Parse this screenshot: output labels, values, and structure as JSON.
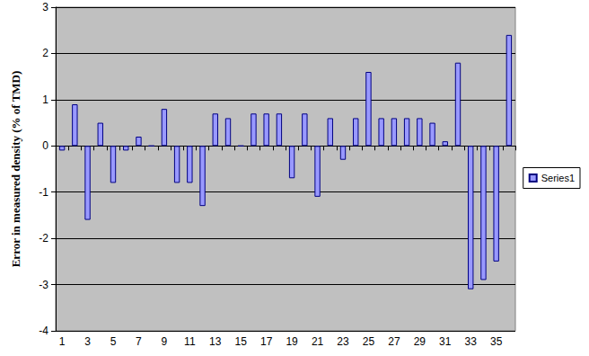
{
  "chart_data": {
    "type": "bar",
    "y_label": "Error in measured density (% of TMD)",
    "categories": [
      "1",
      null,
      "3",
      null,
      "5",
      null,
      "7",
      null,
      "9",
      null,
      "11",
      null,
      "13",
      null,
      "15",
      null,
      "17",
      null,
      "19",
      null,
      "21",
      null,
      "23",
      null,
      "25",
      null,
      "27",
      null,
      "29",
      null,
      "31",
      null,
      "33",
      null,
      "35",
      null
    ],
    "series": [
      {
        "name": "Series1",
        "color": "#9999ff",
        "values": [
          -0.1,
          0.9,
          -1.6,
          0.5,
          -0.8,
          -0.1,
          0.2,
          0,
          0.8,
          -0.8,
          -0.8,
          -1.3,
          0.7,
          0.6,
          0,
          0.7,
          0.7,
          0.7,
          -0.7,
          0.7,
          -1.1,
          0.6,
          -0.3,
          0.6,
          1.6,
          0.6,
          0.6,
          0.6,
          0.6,
          0.5,
          0.1,
          1.8,
          -3.1,
          -2.9,
          -2.5,
          2.4
        ]
      }
    ],
    "ylim": [
      -4,
      3
    ],
    "yticks": [
      -4,
      -3,
      -2,
      -1,
      0,
      1,
      2,
      3
    ],
    "grid": true,
    "legend": "right"
  }
}
